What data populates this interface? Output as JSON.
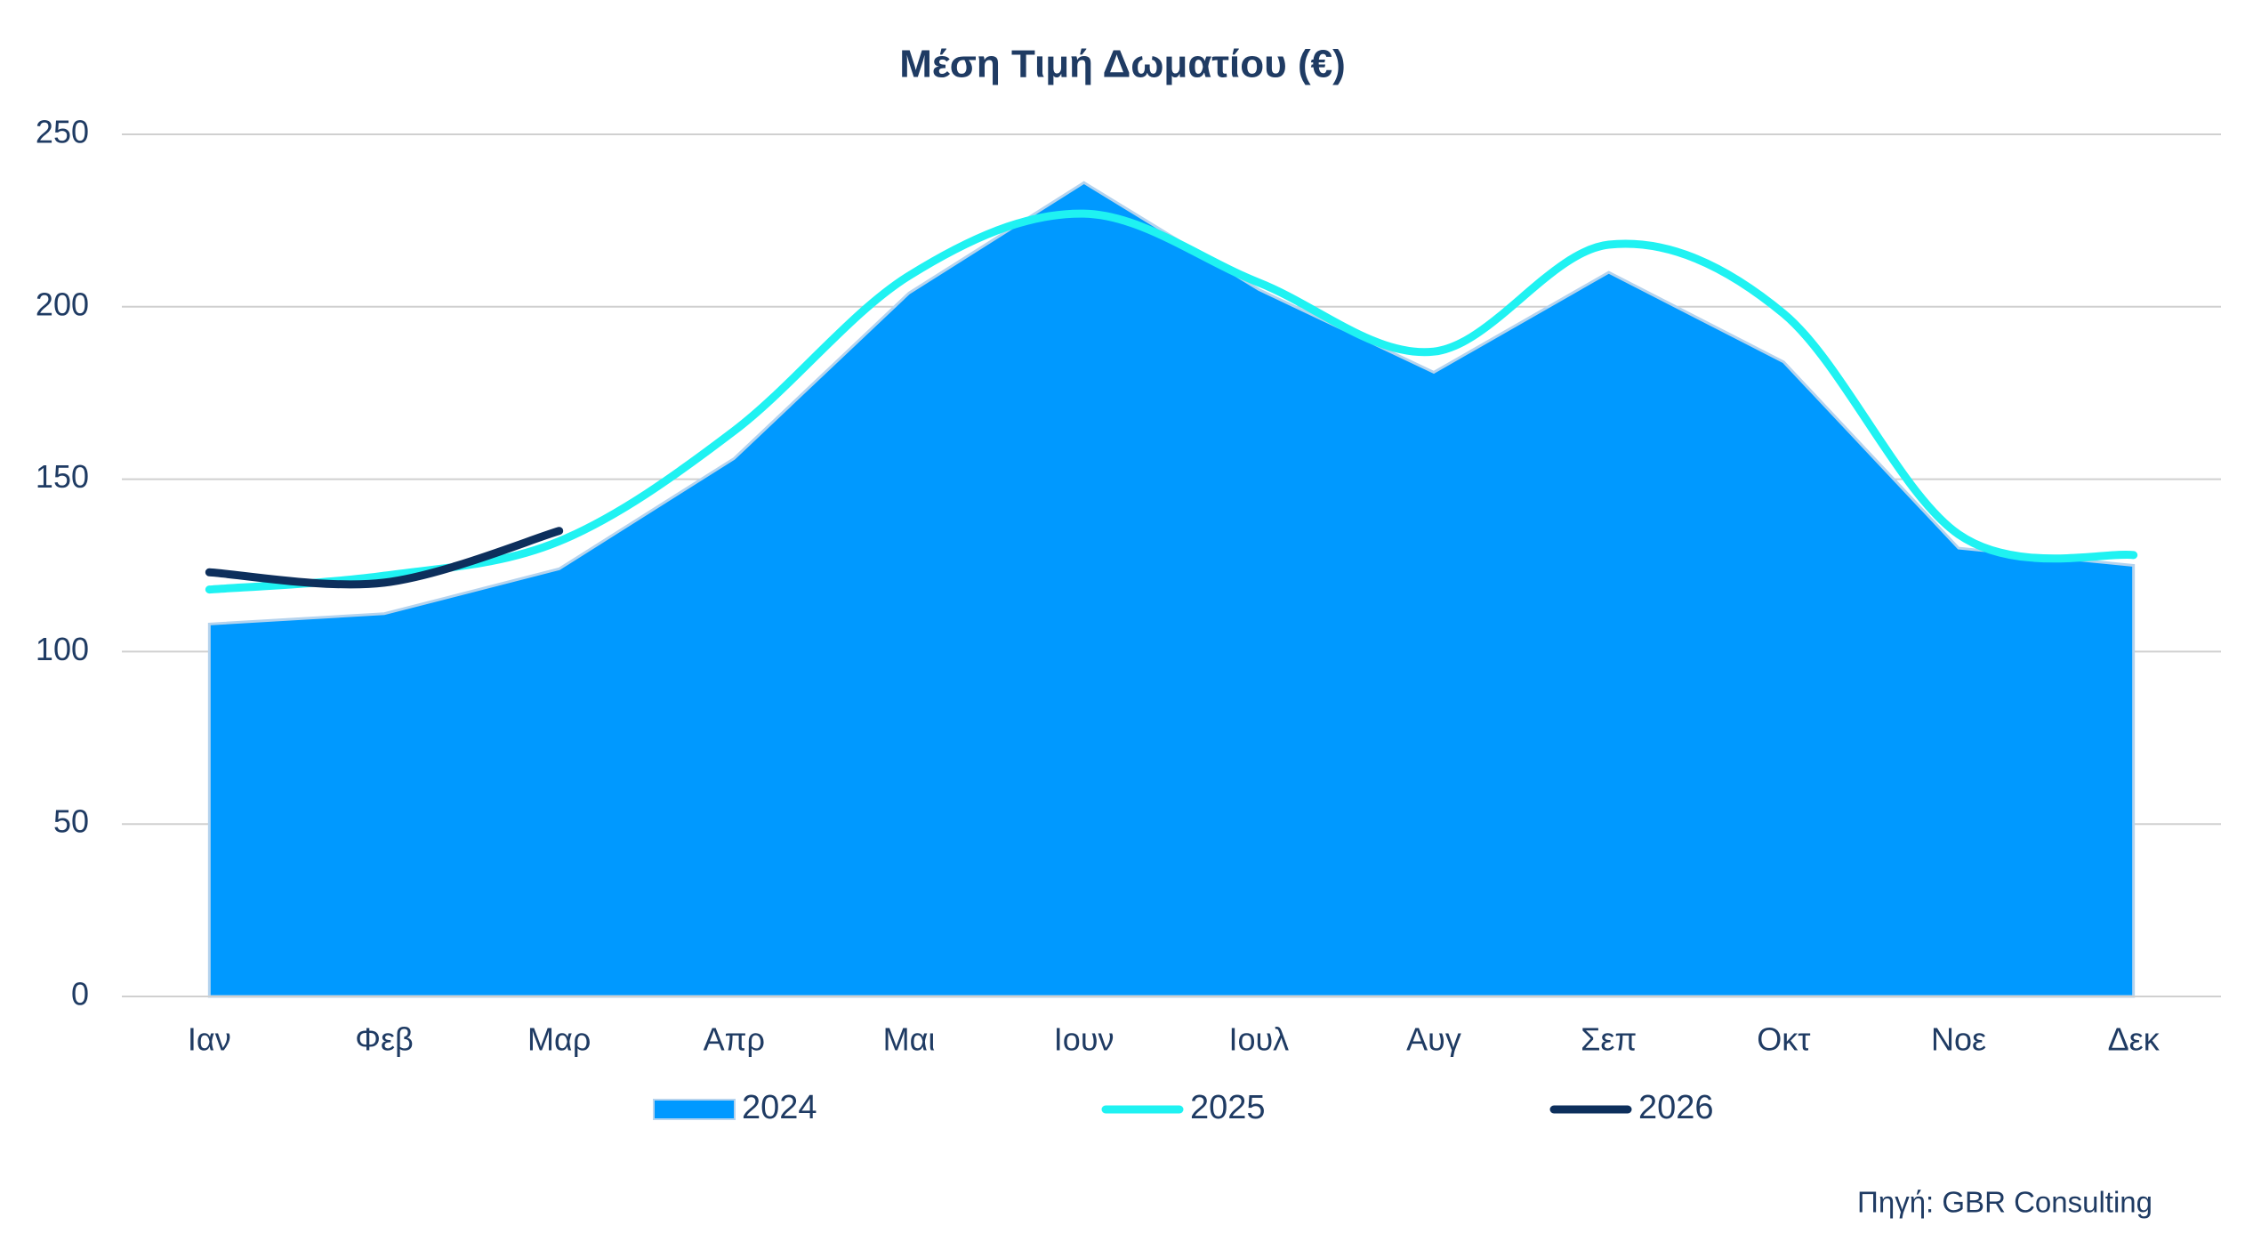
{
  "chart_data": {
    "type": "area-line",
    "title": "Μέση Τιμή Δωματίου (€)",
    "categories": [
      "Ιαν",
      "Φεβ",
      "Μαρ",
      "Απρ",
      "Μαι",
      "Ιουν",
      "Ιουλ",
      "Αυγ",
      "Σεπ",
      "Οκτ",
      "Νοε",
      "Δεκ"
    ],
    "series": [
      {
        "name": "2024",
        "kind": "area",
        "color": "#0099ff",
        "values": [
          108,
          111,
          124,
          156,
          204,
          236,
          205,
          181,
          210,
          184,
          130,
          125
        ]
      },
      {
        "name": "2025",
        "kind": "line",
        "color": "#1ff2f2",
        "values": [
          118,
          122,
          132,
          164,
          209,
          227,
          207,
          187,
          218,
          198,
          134,
          128
        ]
      },
      {
        "name": "2026",
        "kind": "line",
        "color": "#0d2f5c",
        "values": [
          123,
          120,
          135,
          null,
          null,
          null,
          null,
          null,
          null,
          null,
          null,
          null
        ]
      }
    ],
    "ylim": [
      0,
      250
    ],
    "yticks": [
      0,
      50,
      100,
      150,
      200,
      250
    ],
    "grid": true,
    "legend": "bottom",
    "source": "Πηγή: GBR Consulting"
  }
}
